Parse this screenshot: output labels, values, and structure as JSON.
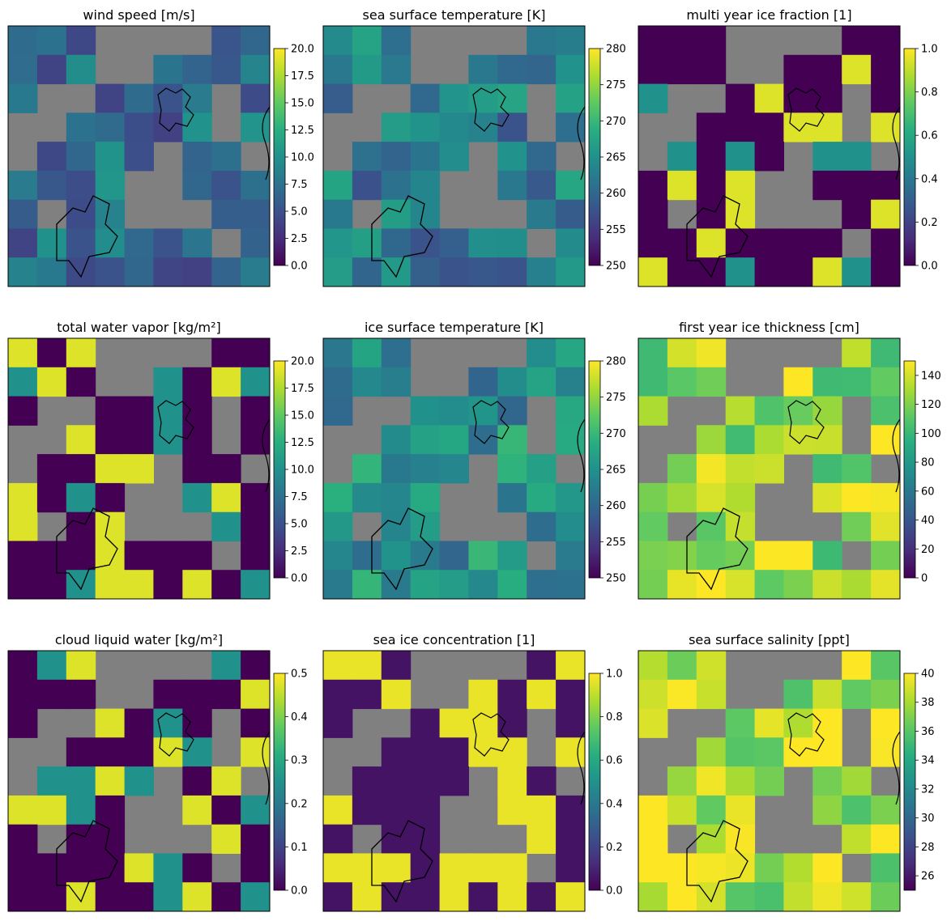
{
  "chart_data": [
    {
      "type": "heatmap",
      "title": "wind speed [m/s]",
      "colorbar": {
        "min": 0,
        "max": 20,
        "ticks": [
          "0.0",
          "2.5",
          "5.0",
          "7.5",
          "10.0",
          "12.5",
          "15.0",
          "17.5",
          "20.0"
        ]
      },
      "colormap": "viridis",
      "masked_color": "#808080"
    },
    {
      "type": "heatmap",
      "title": "sea surface temperature [K]",
      "colorbar": {
        "min": 250,
        "max": 280,
        "ticks": [
          "250",
          "255",
          "260",
          "265",
          "270",
          "275",
          "280"
        ]
      },
      "colormap": "viridis",
      "masked_color": "#808080"
    },
    {
      "type": "heatmap",
      "title": "multi year ice fraction [1]",
      "colorbar": {
        "min": 0,
        "max": 1,
        "ticks": [
          "0.0",
          "0.2",
          "0.4",
          "0.6",
          "0.8",
          "1.0"
        ]
      },
      "colormap": "viridis",
      "masked_color": "#808080"
    },
    {
      "type": "heatmap",
      "title": "total water vapor [kg/m²]",
      "colorbar": {
        "min": 0,
        "max": 20,
        "ticks": [
          "0.0",
          "2.5",
          "5.0",
          "7.5",
          "10.0",
          "12.5",
          "15.0",
          "17.5",
          "20.0"
        ]
      },
      "colormap": "viridis",
      "masked_color": "#808080"
    },
    {
      "type": "heatmap",
      "title": "ice surface temperature [K]",
      "colorbar": {
        "min": 250,
        "max": 280,
        "ticks": [
          "250",
          "255",
          "260",
          "265",
          "270",
          "275",
          "280"
        ]
      },
      "colormap": "viridis",
      "masked_color": "#808080"
    },
    {
      "type": "heatmap",
      "title": "first year ice thickness [cm]",
      "colorbar": {
        "min": 0,
        "max": 150,
        "ticks": [
          "0",
          "20",
          "40",
          "60",
          "80",
          "100",
          "120",
          "140"
        ]
      },
      "colormap": "viridis",
      "masked_color": "#808080"
    },
    {
      "type": "heatmap",
      "title": "cloud liquid water [kg/m²]",
      "colorbar": {
        "min": 0,
        "max": 0.5,
        "ticks": [
          "0.0",
          "0.1",
          "0.2",
          "0.3",
          "0.4",
          "0.5"
        ]
      },
      "colormap": "viridis",
      "masked_color": "#808080"
    },
    {
      "type": "heatmap",
      "title": "sea ice concentration [1]",
      "colorbar": {
        "min": 0,
        "max": 1.0,
        "ticks": [
          "0.0",
          "0.2",
          "0.4",
          "0.6",
          "0.8",
          "1.0"
        ]
      },
      "colormap": "viridis",
      "masked_color": "#808080"
    },
    {
      "type": "heatmap",
      "title": "sea surface salinity [ppt]",
      "colorbar": {
        "min": 25,
        "max": 40,
        "ticks": [
          "26",
          "28",
          "30",
          "32",
          "34",
          "36",
          "38",
          "40"
        ]
      },
      "colormap": "viridis",
      "masked_color": "#808080"
    }
  ]
}
